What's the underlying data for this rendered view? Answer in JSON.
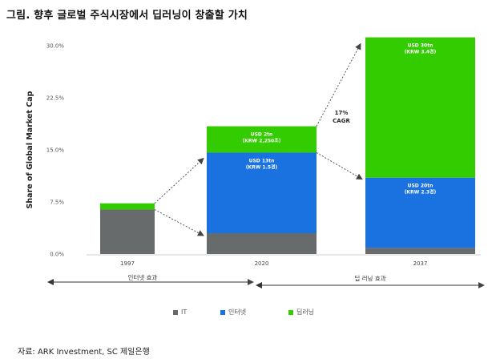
{
  "title": "그림. 향후 글로벌 주식시장에서 딥러닝이 창출할 가치",
  "source": "자료: ARK Investment, SC 제일은행",
  "colors": {
    "it": "#686b6b",
    "internet": "#1a72e0",
    "deep_learning": "#33cc00"
  },
  "chart_data": {
    "type": "bar",
    "stacked": true,
    "ylabel": "Share of Global Market Cap",
    "ylim": [
      0,
      30
    ],
    "yticks": [
      "0.0%",
      "7.5%",
      "15.0%",
      "22.5%",
      "30.0%"
    ],
    "categories": [
      "1997",
      "2020",
      "2037"
    ],
    "series": [
      {
        "name": "IT",
        "values": [
          6.4,
          3.0,
          0.9
        ]
      },
      {
        "name": "인터넷",
        "values": [
          0.0,
          11.6,
          10.1
        ]
      },
      {
        "name": "딥러닝",
        "values": [
          0.9,
          3.8,
          20.2
        ]
      }
    ],
    "bar_labels": [
      {
        "category": "2020",
        "segment": "딥러닝",
        "line1": "USD 2tn",
        "line2": "(KRW 2,250조)"
      },
      {
        "category": "2020",
        "segment": "인터넷",
        "line1": "USD 13tn",
        "line2": "(KRW 1.5경)"
      },
      {
        "category": "2037",
        "segment": "딥러닝",
        "line1": "USD 30tn",
        "line2": "(KRW 3.4경)"
      },
      {
        "category": "2037",
        "segment": "인터넷",
        "line1": "USD 20tn",
        "line2": "(KRW 2.3경)"
      }
    ],
    "annotation": {
      "line1": "17%",
      "line2": "CAGR"
    },
    "eras": [
      "인터넷 효과",
      "딥 러닝 효과"
    ],
    "legend": [
      "IT",
      "인터넷",
      "딥러닝"
    ]
  }
}
